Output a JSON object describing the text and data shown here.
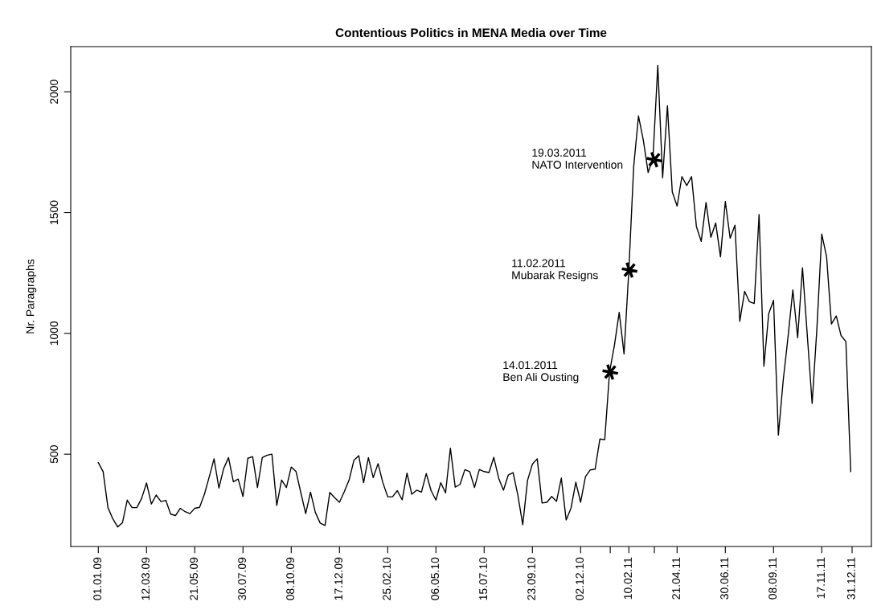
{
  "chart_data": {
    "type": "line",
    "title": "Contentious Politics in MENA Media over Time",
    "ylabel": "Nr. Paragraphs",
    "x": [
      "2009-01-01",
      "2009-01-08",
      "2009-01-15",
      "2009-01-22",
      "2009-01-29",
      "2009-02-05",
      "2009-02-12",
      "2009-02-19",
      "2009-02-26",
      "2009-03-05",
      "2009-03-12",
      "2009-03-19",
      "2009-03-26",
      "2009-04-02",
      "2009-04-09",
      "2009-04-16",
      "2009-04-23",
      "2009-04-30",
      "2009-05-07",
      "2009-05-14",
      "2009-05-21",
      "2009-05-28",
      "2009-06-04",
      "2009-06-11",
      "2009-06-18",
      "2009-06-25",
      "2009-07-02",
      "2009-07-09",
      "2009-07-16",
      "2009-07-23",
      "2009-07-30",
      "2009-08-06",
      "2009-08-13",
      "2009-08-20",
      "2009-08-27",
      "2009-09-03",
      "2009-09-10",
      "2009-09-17",
      "2009-09-24",
      "2009-10-01",
      "2009-10-08",
      "2009-10-15",
      "2009-10-22",
      "2009-10-29",
      "2009-11-05",
      "2009-11-12",
      "2009-11-19",
      "2009-11-26",
      "2009-12-03",
      "2009-12-10",
      "2009-12-17",
      "2009-12-24",
      "2009-12-31",
      "2010-01-07",
      "2010-01-14",
      "2010-01-21",
      "2010-01-28",
      "2010-02-04",
      "2010-02-11",
      "2010-02-18",
      "2010-02-25",
      "2010-03-04",
      "2010-03-11",
      "2010-03-18",
      "2010-03-25",
      "2010-04-01",
      "2010-04-08",
      "2010-04-15",
      "2010-04-22",
      "2010-04-29",
      "2010-05-06",
      "2010-05-13",
      "2010-05-20",
      "2010-05-27",
      "2010-06-03",
      "2010-06-10",
      "2010-06-17",
      "2010-06-24",
      "2010-07-01",
      "2010-07-08",
      "2010-07-15",
      "2010-07-22",
      "2010-07-29",
      "2010-08-05",
      "2010-08-12",
      "2010-08-19",
      "2010-08-26",
      "2010-09-02",
      "2010-09-09",
      "2010-09-16",
      "2010-09-23",
      "2010-09-30",
      "2010-10-07",
      "2010-10-14",
      "2010-10-21",
      "2010-10-28",
      "2010-11-04",
      "2010-11-11",
      "2010-11-18",
      "2010-11-25",
      "2010-12-02",
      "2010-12-09",
      "2010-12-16",
      "2010-12-23",
      "2010-12-30",
      "2011-01-06",
      "2011-01-13",
      "2011-01-20",
      "2011-01-27",
      "2011-02-03",
      "2011-02-10",
      "2011-02-17",
      "2011-02-24",
      "2011-03-03",
      "2011-03-10",
      "2011-03-17",
      "2011-03-24",
      "2011-03-31",
      "2011-04-07",
      "2011-04-14",
      "2011-04-21",
      "2011-04-28",
      "2011-05-05",
      "2011-05-12",
      "2011-05-19",
      "2011-05-26",
      "2011-06-02",
      "2011-06-09",
      "2011-06-16",
      "2011-06-23",
      "2011-06-30",
      "2011-07-07",
      "2011-07-14",
      "2011-07-21",
      "2011-07-28",
      "2011-08-04",
      "2011-08-11",
      "2011-08-18",
      "2011-08-25",
      "2011-09-01",
      "2011-09-08",
      "2011-09-15",
      "2011-09-22",
      "2011-09-29",
      "2011-10-06",
      "2011-10-13",
      "2011-10-20",
      "2011-10-27",
      "2011-11-03",
      "2011-11-10",
      "2011-11-17",
      "2011-11-24",
      "2011-12-01",
      "2011-12-08",
      "2011-12-15",
      "2011-12-22",
      "2011-12-29"
    ],
    "series": [
      {
        "color": "#000000",
        "values": [
          465,
          428,
          279,
          233,
          199,
          216,
          310,
          279,
          279,
          318,
          381,
          294,
          331,
          304,
          309,
          252,
          246,
          276,
          262,
          254,
          276,
          280,
          334,
          406,
          481,
          360,
          441,
          486,
          386,
          397,
          325,
          483,
          490,
          362,
          486,
          496,
          500,
          288,
          393,
          362,
          447,
          428,
          340,
          254,
          343,
          259,
          215,
          205,
          342,
          320,
          301,
          345,
          393,
          475,
          494,
          382,
          486,
          403,
          461,
          382,
          324,
          324,
          349,
          311,
          422,
          334,
          351,
          343,
          420,
          349,
          310,
          382,
          340,
          525,
          364,
          375,
          436,
          428,
          362,
          437,
          428,
          424,
          487,
          401,
          351,
          414,
          424,
          329,
          208,
          392,
          459,
          481,
          298,
          301,
          325,
          305,
          401,
          228,
          276,
          384,
          301,
          407,
          435,
          438,
          563,
          560,
          840,
          950,
          1087,
          915,
          1262,
          1690,
          1900,
          1800,
          1666,
          1727,
          2109,
          1644,
          1942,
          1586,
          1527,
          1649,
          1612,
          1649,
          1443,
          1381,
          1542,
          1398,
          1457,
          1317,
          1546,
          1394,
          1448,
          1050,
          1174,
          1131,
          1124,
          1492,
          864,
          1082,
          1137,
          579,
          805,
          985,
          1180,
          982,
          1272,
          991,
          710,
          1024,
          1411,
          1317,
          1039,
          1072,
          991,
          966,
          428
        ]
      }
    ],
    "xlim": [
      "2008-11-22",
      "2012-01-28"
    ],
    "xticks": [
      {
        "value": "2009-01-01",
        "label": "01.01.09"
      },
      {
        "value": "2009-03-12",
        "label": "12.03.09"
      },
      {
        "value": "2009-05-21",
        "label": "21.05.09"
      },
      {
        "value": "2009-07-30",
        "label": "30.07.09"
      },
      {
        "value": "2009-10-08",
        "label": "08.10.09"
      },
      {
        "value": "2009-12-17",
        "label": "17.12.09"
      },
      {
        "value": "2010-02-25",
        "label": "25.02.10"
      },
      {
        "value": "2010-05-06",
        "label": "06.05.10"
      },
      {
        "value": "2010-07-15",
        "label": "15.07.10"
      },
      {
        "value": "2010-09-23",
        "label": "23.09.10"
      },
      {
        "value": "2010-12-02",
        "label": "02.12.10"
      },
      {
        "value": "2011-01-14",
        "label": null
      },
      {
        "value": "2011-02-10",
        "label": "10.02.11"
      },
      {
        "value": "2011-03-19",
        "label": null
      },
      {
        "value": "2011-04-21",
        "label": "21.04.11"
      },
      {
        "value": "2011-06-30",
        "label": "30.06.11"
      },
      {
        "value": "2011-09-08",
        "label": "08.09.11"
      },
      {
        "value": "2011-11-17",
        "label": "17.11.11"
      },
      {
        "value": "2011-12-31",
        "label": "31.12.11"
      }
    ],
    "ylim": [
      118,
      2187
    ],
    "yticks": [
      500,
      1000,
      1500,
      2000
    ],
    "annotations": [
      {
        "text": "14.01.2011\nBen Ali Ousting",
        "x": "2011-01-14",
        "y": 840
      },
      {
        "text": "11.02.2011\nMubarak Resigns",
        "x": "2011-02-11",
        "y": 1262
      },
      {
        "text": "19.03.2011\nNATO Intervention",
        "x": "2011-03-19",
        "y": 1719
      }
    ],
    "grid": false
  }
}
